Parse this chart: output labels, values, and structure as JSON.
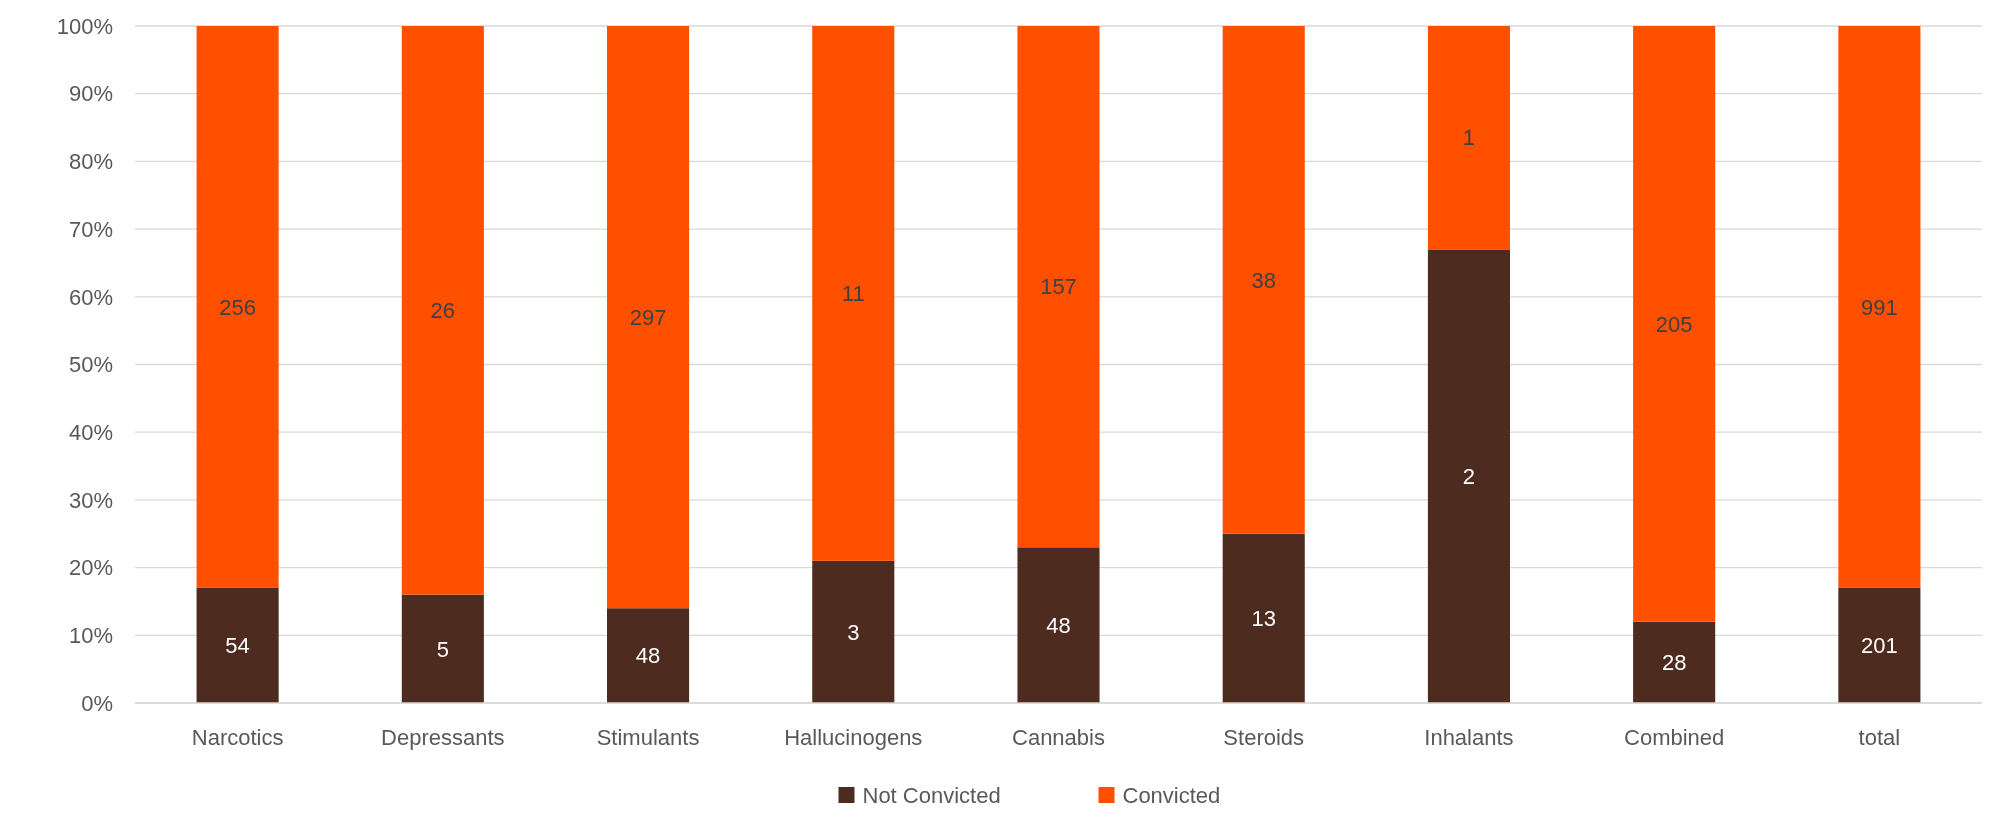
{
  "chart_data": {
    "type": "bar",
    "stacked": true,
    "categories": [
      "Narcotics",
      "Depressants",
      "Stimulants",
      "Hallucinogens",
      "Cannabis",
      "Steroids",
      "Inhalants",
      "Combined",
      "total"
    ],
    "series": [
      {
        "name": "Not Convicted",
        "color": "#4e2b1f",
        "values": [
          17,
          16,
          14,
          21,
          23,
          25,
          67,
          12,
          17
        ]
      },
      {
        "name": "Convicted",
        "color": "#ff5000",
        "values": [
          83,
          84,
          86,
          79,
          77,
          75,
          33,
          88,
          83
        ]
      }
    ],
    "annotations": [
      "54",
      "256",
      "5",
      "26",
      "48",
      "297",
      "3",
      "11",
      "48",
      "157",
      "13",
      "38",
      "2",
      "1",
      "28",
      "205",
      "201",
      "991"
    ],
    "ylim": [
      0,
      100
    ],
    "yticks": [
      {
        "value": 0,
        "label": "0%"
      },
      {
        "value": 10,
        "label": "10%"
      },
      {
        "value": 20,
        "label": "20%"
      },
      {
        "value": 30,
        "label": "30%"
      },
      {
        "value": 40,
        "label": "40%"
      },
      {
        "value": 50,
        "label": "50%"
      },
      {
        "value": 60,
        "label": "60%"
      },
      {
        "value": 70,
        "label": "70%"
      },
      {
        "value": 80,
        "label": "80%"
      },
      {
        "value": 90,
        "label": "90%"
      },
      {
        "value": 100,
        "label": "100%"
      }
    ],
    "grid": "y",
    "legend": "bottom"
  }
}
